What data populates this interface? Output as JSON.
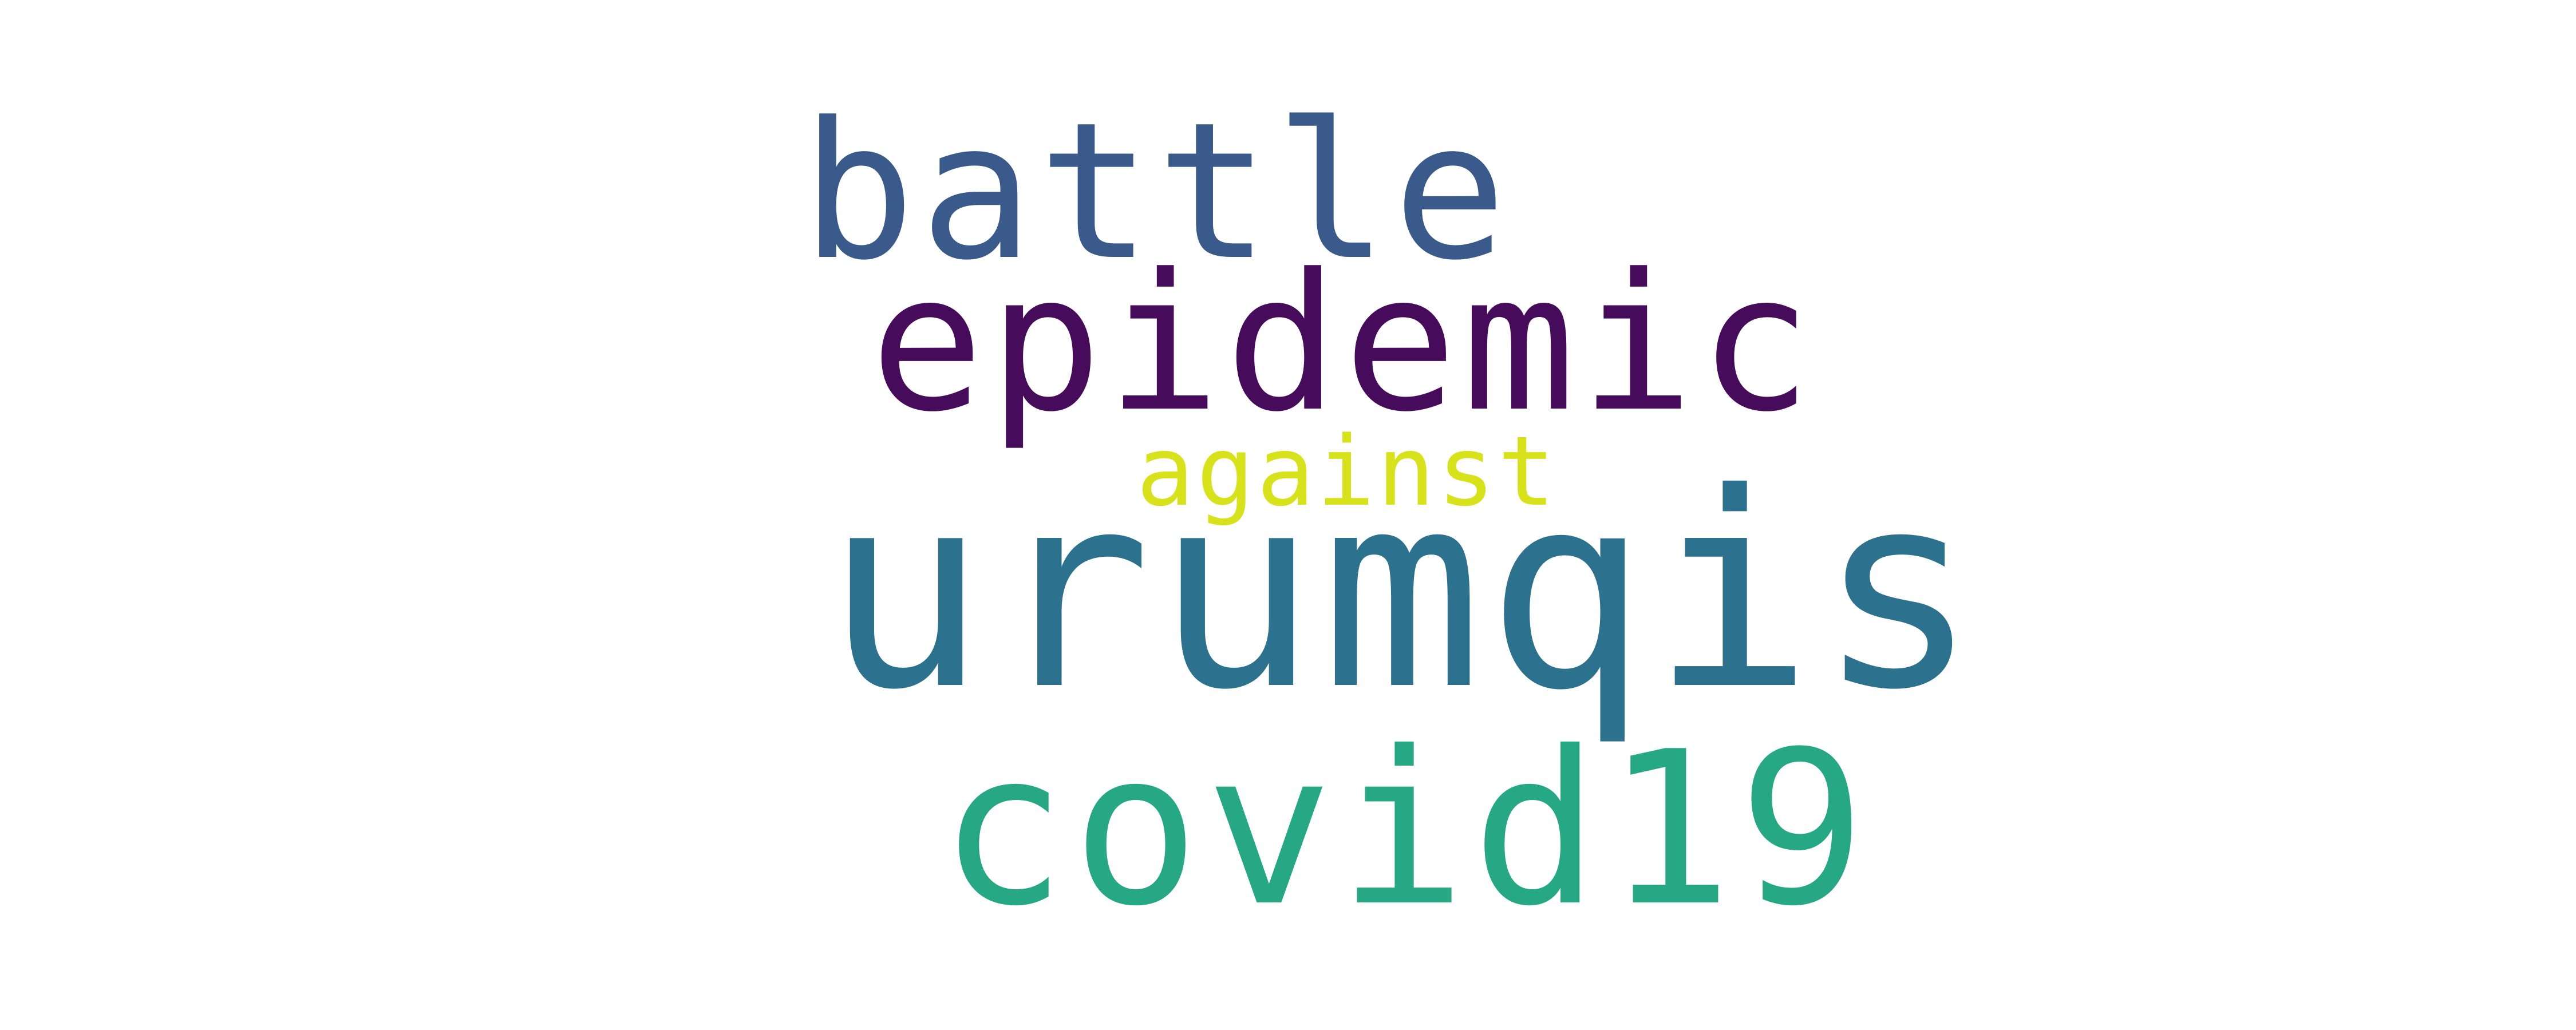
{
  "word_cloud": {
    "background_color": "#ffffff",
    "words": [
      {
        "key": "battle",
        "text": "battle",
        "color": "#3b5a8c"
      },
      {
        "key": "epidemic",
        "text": "epidemic",
        "color": "#470b5c"
      },
      {
        "key": "against",
        "text": "against",
        "color": "#d8e21b"
      },
      {
        "key": "urumqis",
        "text": "urumqis",
        "color": "#2c728e"
      },
      {
        "key": "covid19",
        "text": "covid19",
        "color": "#26a884"
      }
    ]
  }
}
